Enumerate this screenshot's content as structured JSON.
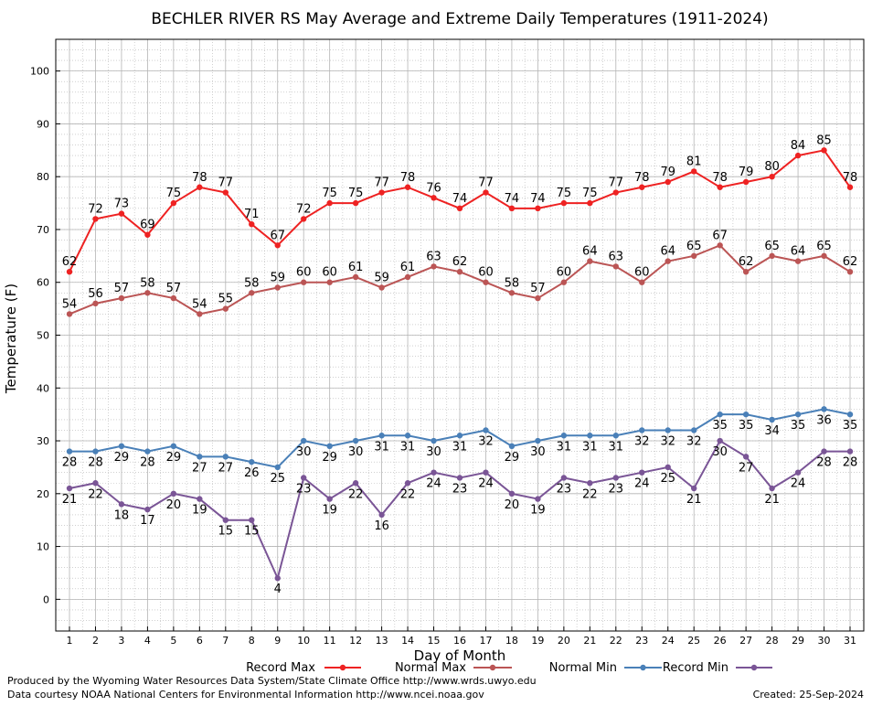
{
  "chart_data": {
    "type": "line",
    "title": "BECHLER RIVER RS May Average and Extreme Daily Temperatures (1911-2024)",
    "xlabel": "Day of Month",
    "ylabel": "Temperature (F)",
    "ylim": [
      -6,
      106
    ],
    "yticks": [
      0,
      10,
      20,
      30,
      40,
      50,
      60,
      70,
      80,
      90,
      100
    ],
    "grid": true,
    "legend_position": "bottom",
    "x": [
      1,
      2,
      3,
      4,
      5,
      6,
      7,
      8,
      9,
      10,
      11,
      12,
      13,
      14,
      15,
      16,
      17,
      18,
      19,
      20,
      21,
      22,
      23,
      24,
      25,
      26,
      27,
      28,
      29,
      30,
      31
    ],
    "series": [
      {
        "name": "Record Max",
        "color": "#ee2222",
        "label_pos": "above",
        "values": [
          62,
          72,
          73,
          69,
          75,
          78,
          77,
          71,
          67,
          72,
          75,
          75,
          77,
          78,
          76,
          74,
          77,
          74,
          74,
          75,
          75,
          77,
          78,
          79,
          81,
          78,
          79,
          80,
          84,
          85,
          78
        ]
      },
      {
        "name": "Normal Max",
        "color": "#bb5555",
        "label_pos": "above",
        "values": [
          54,
          56,
          57,
          58,
          57,
          54,
          55,
          58,
          59,
          60,
          60,
          61,
          59,
          61,
          63,
          62,
          60,
          58,
          57,
          60,
          64,
          63,
          60,
          64,
          65,
          67,
          62,
          65,
          64,
          65,
          62
        ]
      },
      {
        "name": "Normal Min",
        "color": "#4a80b8",
        "label_pos": "below",
        "values": [
          28,
          28,
          29,
          28,
          29,
          27,
          27,
          26,
          25,
          30,
          29,
          30,
          31,
          31,
          30,
          31,
          32,
          29,
          30,
          31,
          31,
          31,
          32,
          32,
          32,
          35,
          35,
          34,
          35,
          36,
          35
        ]
      },
      {
        "name": "Record Min",
        "color": "#7a5596",
        "label_pos": "below",
        "values": [
          21,
          22,
          18,
          17,
          20,
          19,
          15,
          15,
          4,
          23,
          19,
          22,
          16,
          22,
          24,
          23,
          24,
          20,
          19,
          23,
          22,
          23,
          24,
          25,
          21,
          30,
          27,
          21,
          24,
          28,
          28
        ]
      }
    ]
  },
  "footer": {
    "credit_line1": "Produced by the Wyoming Water Resources Data System/State Climate Office http://www.wrds.uwyo.edu",
    "credit_line2": "Data courtesy NOAA National Centers for Environmental Information http://www.ncei.noaa.gov",
    "created": "Created:  25-Sep-2024"
  }
}
